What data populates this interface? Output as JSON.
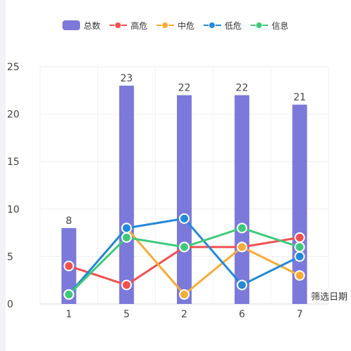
{
  "chart_data": {
    "type": "bar",
    "categories": [
      "1",
      "5",
      "2",
      "6",
      "7"
    ],
    "xlabel": "筛选日期",
    "ylabel": "",
    "ylim": [
      0,
      25
    ],
    "y_ticks": [
      0,
      5,
      10,
      15,
      20,
      25
    ],
    "grid": true,
    "legend_position": "top",
    "bar_series": {
      "name": "总数",
      "values": [
        8,
        23,
        22,
        22,
        21
      ],
      "color": "#7b79d9"
    },
    "line_series": [
      {
        "name": "高危",
        "values": [
          4,
          2,
          6,
          6,
          7
        ],
        "color": "#f05050"
      },
      {
        "name": "中危",
        "values": [
          1,
          8,
          1,
          6,
          3
        ],
        "color": "#f8ab35"
      },
      {
        "name": "低危",
        "values": [
          1,
          8,
          9,
          2,
          5
        ],
        "color": "#2389d9"
      },
      {
        "name": "信息",
        "values": [
          1,
          7,
          6,
          8,
          6
        ],
        "color": "#3ec97a"
      }
    ]
  }
}
